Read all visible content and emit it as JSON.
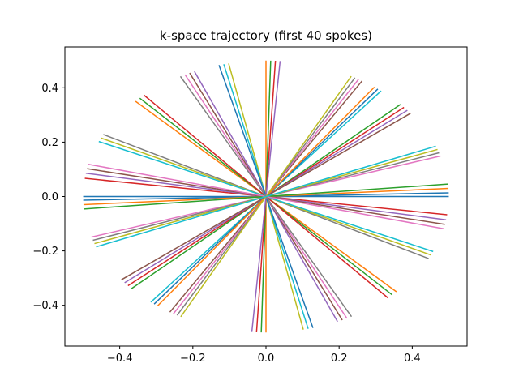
{
  "chart_data": {
    "type": "line",
    "title": "k-space trajectory (first 40 spokes)",
    "xlabel": "",
    "ylabel": "",
    "xlim": [
      -0.55,
      0.55
    ],
    "ylim": [
      -0.55,
      0.55
    ],
    "grid": false,
    "legend": "none",
    "x_ticks": [
      -0.4,
      -0.2,
      0.0,
      0.2,
      0.4
    ],
    "x_tick_labels": [
      "−0.4",
      "−0.2",
      "0.0",
      "0.2",
      "0.4"
    ],
    "y_ticks": [
      -0.4,
      -0.2,
      0.0,
      0.2,
      0.4
    ],
    "y_tick_labels": [
      "−0.4",
      "−0.2",
      "0.0",
      "0.2",
      "0.4"
    ],
    "colors": [
      "#1f77b4",
      "#ff7f0e",
      "#2ca02c",
      "#d62728",
      "#9467bd",
      "#8c564b",
      "#e377c2",
      "#7f7f7f",
      "#bcbd22",
      "#17becf"
    ],
    "series": [
      {
        "x": [
          -0.5,
          0.5
        ],
        "y": [
          0.0,
          0.0
        ]
      },
      {
        "x": [
          -0.0,
          0.0
        ],
        "y": [
          0.5,
          -0.5
        ]
      },
      {
        "x": [
          0.3679,
          -0.3679
        ],
        "y": [
          0.3386,
          -0.3386
        ]
      },
      {
        "x": [
          -0.4955,
          0.4955
        ],
        "y": [
          0.0669,
          -0.0669
        ]
      },
      {
        "x": [
          0.1957,
          -0.1957
        ],
        "y": [
          -0.4601,
          0.4601
        ]
      },
      {
        "x": [
          0.2629,
          -0.2629
        ],
        "y": [
          0.4253,
          -0.4253
        ]
      },
      {
        "x": [
          -0.4773,
          0.4773
        ],
        "y": [
          -0.1491,
          0.1491
        ]
      },
      {
        "x": [
          0.4449,
          -0.4449
        ],
        "y": [
          -0.2282,
          0.2282
        ]
      },
      {
        "x": [
          -0.1021,
          0.1021
        ],
        "y": [
          0.4895,
          -0.4895
        ]
      },
      {
        "x": [
          -0.3149,
          0.3149
        ],
        "y": [
          -0.3884,
          0.3884
        ]
      },
      {
        "x": [
          0.4998,
          -0.4998
        ],
        "y": [
          0.0133,
          -0.0133
        ]
      },
      {
        "x": [
          -0.3568,
          0.3568
        ],
        "y": [
          0.3503,
          -0.3503
        ]
      },
      {
        "x": [
          -0.0129,
          0.0129
        ],
        "y": [
          -0.4998,
          0.4998
        ]
      },
      {
        "x": [
          0.3774,
          -0.3774
        ],
        "y": [
          0.328,
          -0.328
        ]
      },
      {
        "x": [
          -0.4926,
          0.4926
        ],
        "y": [
          0.0857,
          -0.0857
        ]
      },
      {
        "x": [
          0.2087,
          -0.2087
        ],
        "y": [
          -0.4544,
          0.4544
        ]
      },
      {
        "x": [
          0.2531,
          -0.2531
        ],
        "y": [
          0.4312,
          -0.4312
        ]
      },
      {
        "x": [
          -0.4734,
          0.4734
        ],
        "y": [
          -0.1609,
          0.1609
        ]
      },
      {
        "x": [
          0.4513,
          -0.4513
        ],
        "y": [
          -0.2152,
          0.2152
        ]
      },
      {
        "x": [
          -0.1154,
          0.1154
        ],
        "y": [
          0.4865,
          -0.4865
        ]
      },
      {
        "x": [
          -0.3059,
          0.3059
        ],
        "y": [
          -0.3955,
          0.3955
        ]
      },
      {
        "x": [
          0.4991,
          -0.4991
        ],
        "y": [
          0.0297,
          -0.0297
        ]
      },
      {
        "x": [
          -0.3452,
          0.3452
        ],
        "y": [
          0.3617,
          -0.3617
        ]
      },
      {
        "x": [
          -0.0258,
          0.0258
        ],
        "y": [
          -0.4993,
          0.4993
        ]
      },
      {
        "x": [
          0.3866,
          -0.3866
        ],
        "y": [
          0.3171,
          -0.3171
        ]
      },
      {
        "x": [
          -0.4894,
          0.4894
        ],
        "y": [
          0.1025,
          -0.1025
        ]
      },
      {
        "x": [
          0.2214,
          -0.2214
        ],
        "y": [
          -0.4483,
          0.4483
        ]
      },
      {
        "x": [
          0.2432,
          -0.2432
        ],
        "y": [
          0.4369,
          -0.4369
        ]
      },
      {
        "x": [
          -0.4691,
          0.4691
        ],
        "y": [
          -0.1731,
          0.1731
        ]
      },
      {
        "x": [
          0.4573,
          -0.4573
        ],
        "y": [
          -0.2023,
          0.2023
        ]
      },
      {
        "x": [
          -0.1285,
          0.1285
        ],
        "y": [
          0.4832,
          -0.4832
        ]
      },
      {
        "x": [
          -0.2966,
          0.2966
        ],
        "y": [
          -0.4025,
          0.4025
        ]
      },
      {
        "x": [
          0.4979,
          -0.4979
        ],
        "y": [
          0.0457,
          -0.0457
        ]
      },
      {
        "x": [
          -0.3334,
          0.3334
        ],
        "y": [
          0.3726,
          -0.3726
        ]
      },
      {
        "x": [
          -0.0387,
          0.0387
        ],
        "y": [
          -0.4985,
          0.4985
        ]
      },
      {
        "x": [
          0.3954,
          -0.3954
        ],
        "y": [
          0.3061,
          -0.3061
        ]
      },
      {
        "x": [
          -0.4858,
          0.4858
        ],
        "y": [
          0.1184,
          -0.1184
        ]
      },
      {
        "x": [
          0.2339,
          -0.2339
        ],
        "y": [
          -0.4419,
          0.4419
        ]
      },
      {
        "x": [
          0.2331,
          -0.2331
        ],
        "y": [
          0.4423,
          -0.4423
        ]
      },
      {
        "x": [
          -0.4645,
          0.4645
        ],
        "y": [
          -0.1851,
          0.1851
        ]
      }
    ]
  }
}
